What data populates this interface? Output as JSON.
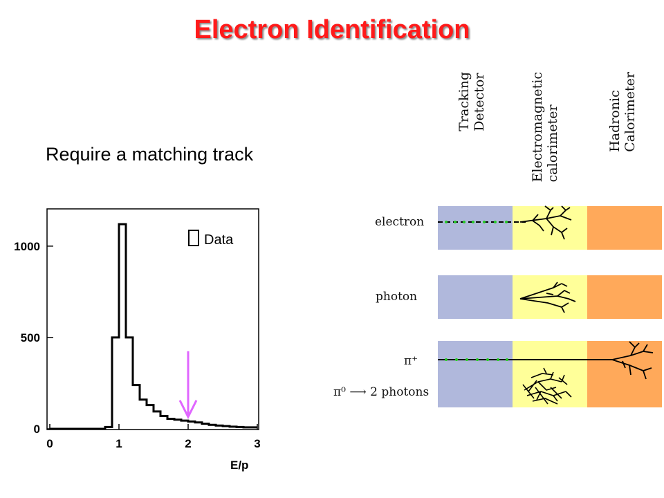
{
  "slide": {
    "title": "Electron Identification",
    "subtitle": "Require a matching track"
  },
  "detector": {
    "layers": [
      {
        "name": "Tracking\nDetector",
        "color": "#b0b8dc"
      },
      {
        "name": "Electromagnetic\ncalorimeter",
        "color": "#ffff99"
      },
      {
        "name": "Hadronic\nCalorimeter",
        "color": "#ffa95a"
      }
    ],
    "particles": [
      {
        "label": "electron"
      },
      {
        "label": "photon"
      },
      {
        "label": "π⁺"
      },
      {
        "label": "π⁰ ⟶ 2 photons"
      }
    ]
  },
  "chart_data": {
    "type": "step-histogram",
    "title": "",
    "xlabel": "E/p",
    "ylabel": "",
    "xlim": [
      0,
      3
    ],
    "ylim": [
      0,
      1200
    ],
    "xticks": [
      0,
      1,
      2,
      3
    ],
    "yticks": [
      0,
      500,
      1000
    ],
    "legend": {
      "label": "Data",
      "position": "top-right"
    },
    "series": [
      {
        "name": "Data",
        "bin_edges": [
          0.0,
          0.8,
          0.9,
          1.0,
          1.1,
          1.2,
          1.3,
          1.4,
          1.5,
          1.6,
          1.7,
          1.8,
          1.9,
          2.0,
          2.1,
          2.2,
          2.3,
          2.4,
          2.5,
          2.6,
          2.7,
          2.8,
          3.0
        ],
        "counts": [
          0,
          10,
          500,
          1120,
          500,
          240,
          160,
          130,
          95,
          70,
          55,
          50,
          45,
          40,
          35,
          28,
          22,
          18,
          15,
          12,
          10,
          8
        ]
      }
    ],
    "annotations": [
      {
        "type": "arrow",
        "x": 2.0,
        "y_from": 425,
        "y_to": 65,
        "color": "#e066ff"
      }
    ]
  }
}
